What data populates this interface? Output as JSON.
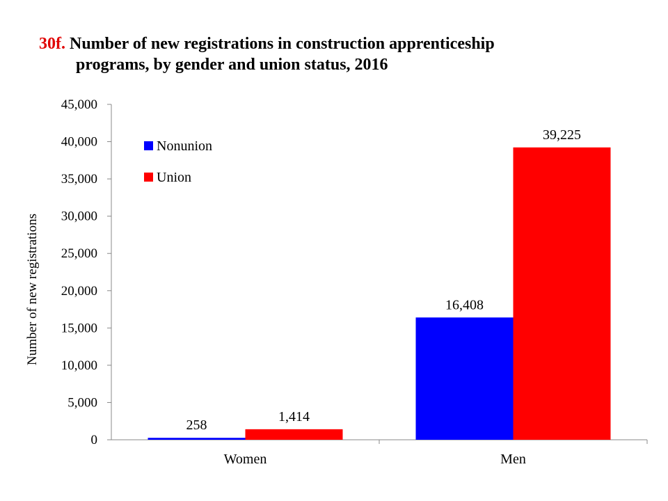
{
  "title": {
    "number": "30f.",
    "line1": "Number of new registrations in construction apprenticeship",
    "line2": "programs, by gender and union status, 2016"
  },
  "chart_data": {
    "type": "bar",
    "categories": [
      "Women",
      "Men"
    ],
    "series": [
      {
        "name": "Nonunion",
        "values": [
          258,
          16408
        ],
        "labels": [
          "258",
          "16,408"
        ],
        "color": "#0000ff"
      },
      {
        "name": "Union",
        "values": [
          1414,
          39225
        ],
        "labels": [
          "1,414",
          "39,225"
        ],
        "color": "#ff0000"
      }
    ],
    "ylabel": "Number of new registrations",
    "xlabel": "",
    "ylim": [
      0,
      45000
    ],
    "yticks": [
      "0",
      "5,000",
      "10,000",
      "15,000",
      "20,000",
      "25,000",
      "30,000",
      "35,000",
      "40,000",
      "45,000"
    ],
    "grid": false,
    "legend": "top-left"
  }
}
